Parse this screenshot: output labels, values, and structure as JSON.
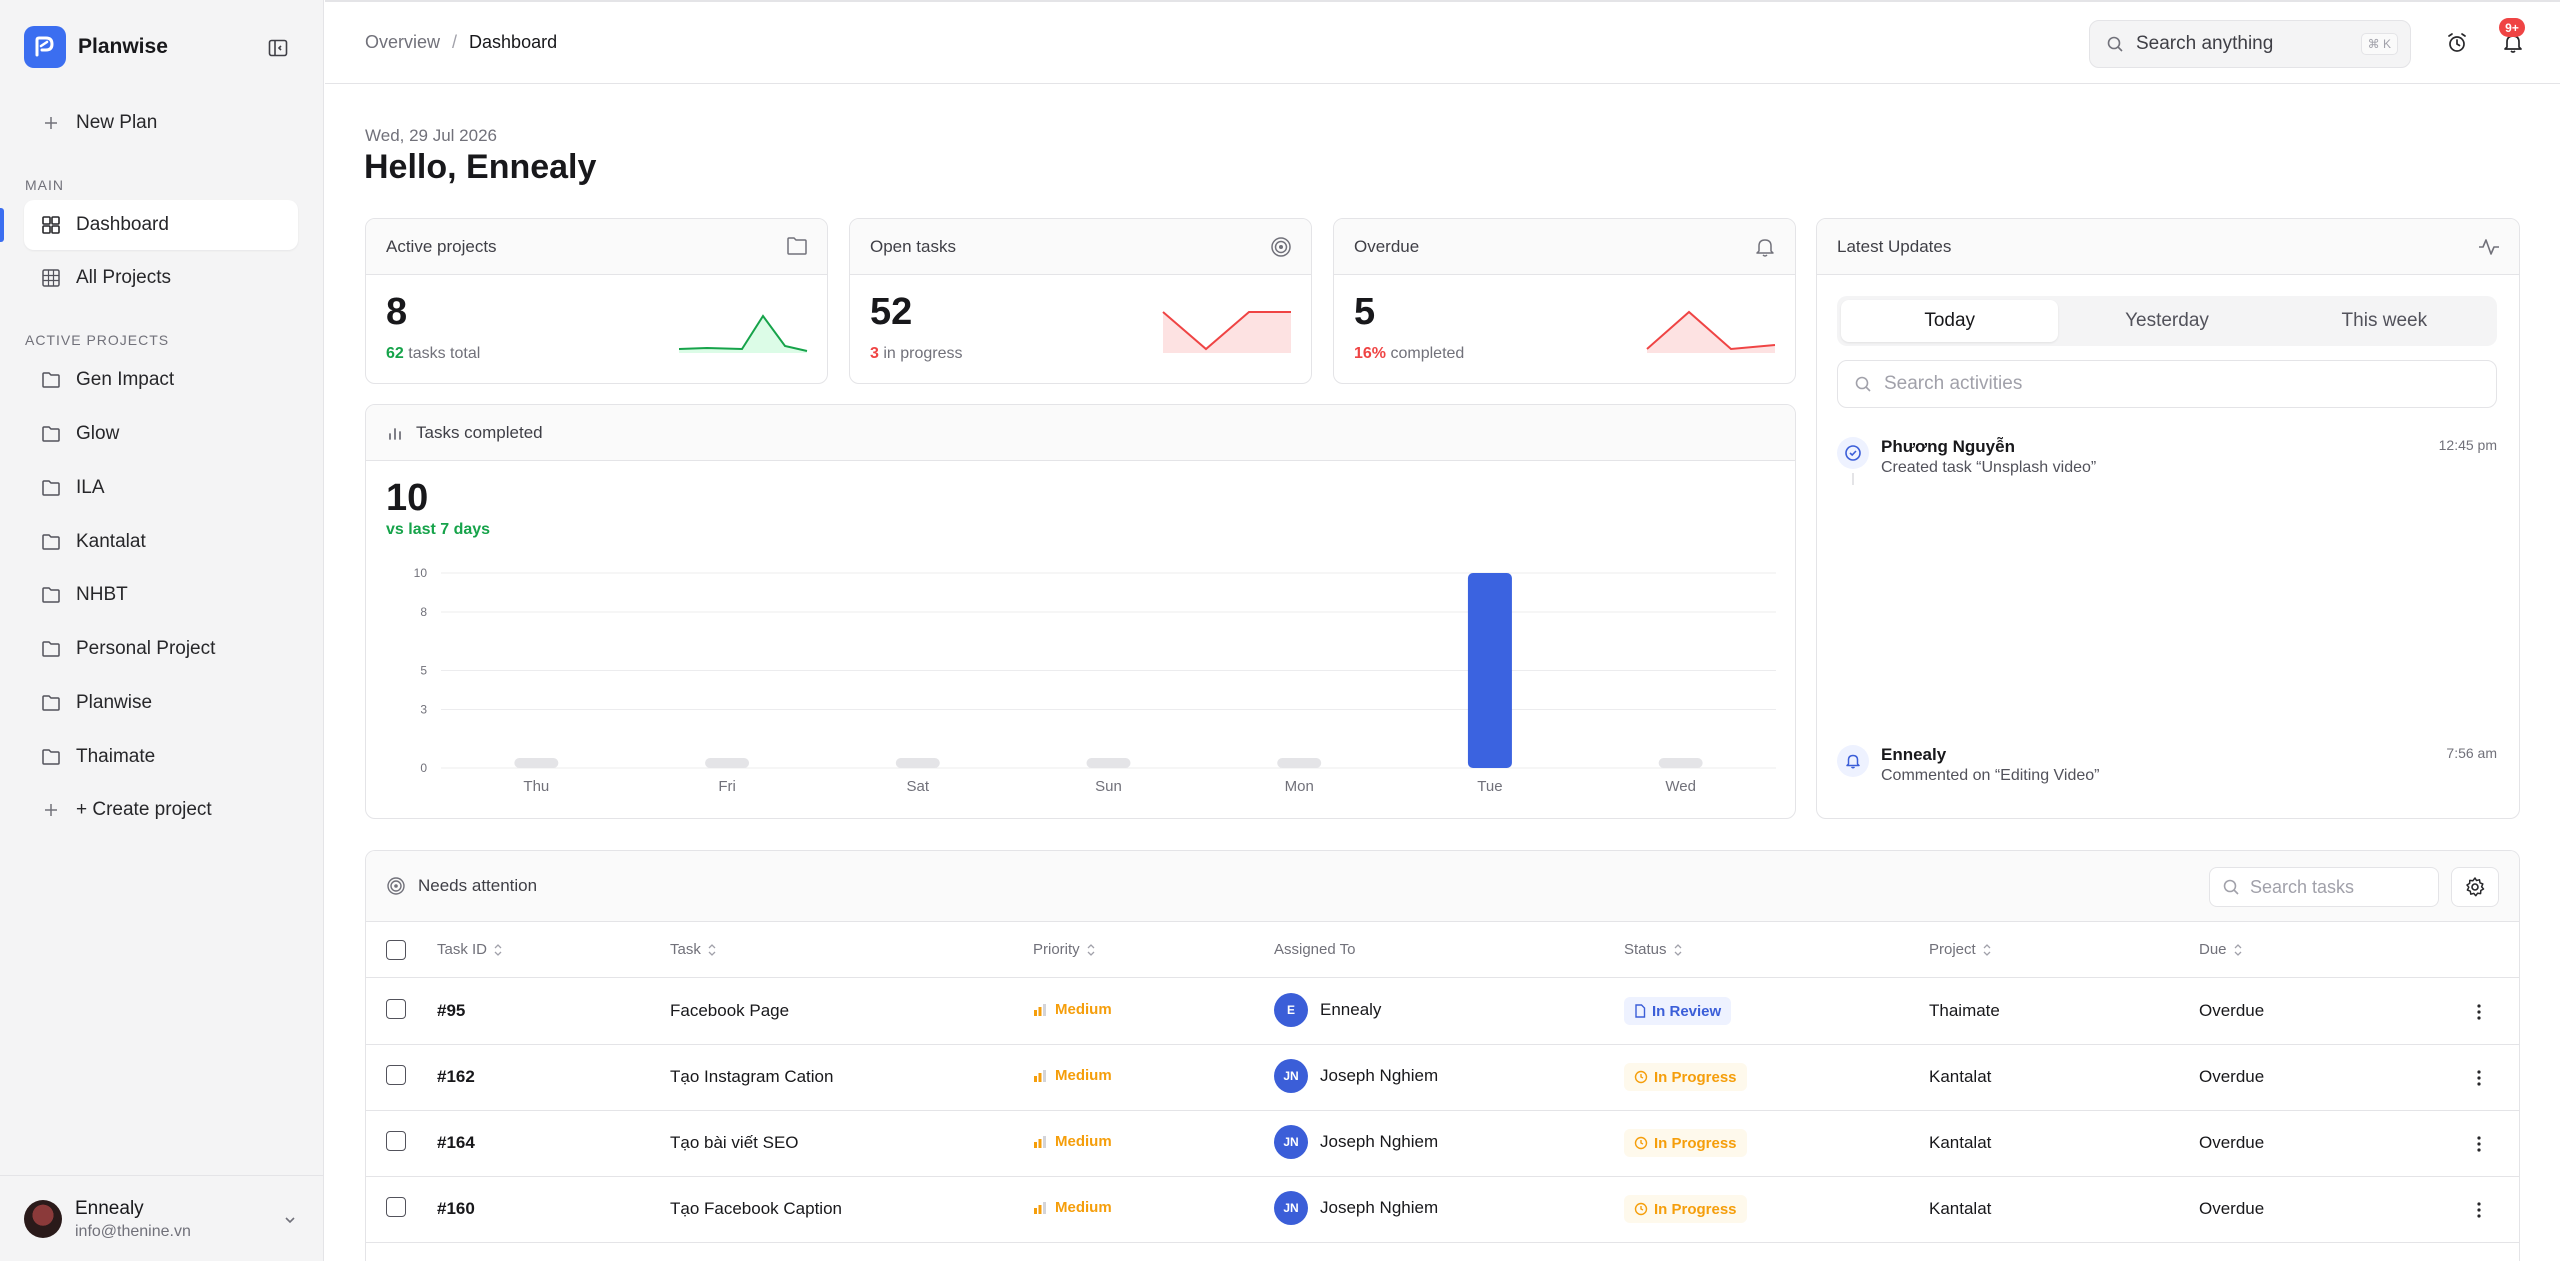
{
  "app": {
    "name": "Planwise"
  },
  "sidebar": {
    "new_plan": "New Plan",
    "main_section": "MAIN",
    "main_items": [
      {
        "label": "Dashboard",
        "icon": "dashboard-icon"
      },
      {
        "label": "All Projects",
        "icon": "grid-icon"
      }
    ],
    "projects_section": "ACTIVE PROJECTS",
    "projects": [
      "Gen Impact",
      "Glow",
      "ILA",
      "Kantalat",
      "NHBT",
      "Personal Project",
      "Planwise",
      "Thaimate"
    ],
    "create_project": "+ Create project",
    "user": {
      "name": "Ennealy",
      "email": "info@thenine.vn"
    }
  },
  "topbar": {
    "breadcrumb": [
      "Overview",
      "Dashboard"
    ],
    "search_placeholder": "Search anything",
    "search_shortcut": "⌘ K",
    "notifications_badge": "9+"
  },
  "header": {
    "date": "Wed, 29 Jul 2026",
    "greeting": "Hello, Ennealy"
  },
  "stats": [
    {
      "title": "Active projects",
      "value": "8",
      "sub_value": "62",
      "sub_label": "tasks total",
      "sub_color": "#16a34a"
    },
    {
      "title": "Open tasks",
      "value": "52",
      "sub_value": "3",
      "sub_label": "in progress",
      "sub_color": "#ef4444"
    },
    {
      "title": "Overdue",
      "value": "5",
      "sub_value": "16%",
      "sub_label": "completed",
      "sub_color": "#ef4444"
    }
  ],
  "tasks_chart": {
    "title": "Tasks completed",
    "value": "10",
    "subtitle": "vs last 7 days"
  },
  "chart_data": {
    "type": "bar",
    "categories": [
      "Thu",
      "Fri",
      "Sat",
      "Sun",
      "Mon",
      "Tue",
      "Wed"
    ],
    "values": [
      0,
      0,
      0,
      0,
      0,
      10,
      0
    ],
    "y_ticks": [
      0,
      3,
      5,
      8,
      10
    ],
    "ylim": [
      0,
      10
    ],
    "bar_color": "#3b63e0",
    "empty_bar_color": "#e4e4e7",
    "grid": true
  },
  "updates": {
    "title": "Latest Updates",
    "tabs": [
      "Today",
      "Yesterday",
      "This week"
    ],
    "active_tab": "Today",
    "search_placeholder": "Search activities",
    "items": [
      {
        "name": "Phương Nguyễn",
        "desc": "Created task “Unsplash video”",
        "time": "12:45 pm",
        "icon": "check-circle-icon"
      },
      {
        "name": "Ennealy",
        "desc": "Commented on “Editing Video”",
        "time": "7:56 am",
        "icon": "bell-icon"
      }
    ]
  },
  "table": {
    "title": "Needs attention",
    "search_placeholder": "Search tasks",
    "columns": [
      "Task ID",
      "Task",
      "Priority",
      "Assigned To",
      "Status",
      "Project",
      "Due"
    ],
    "rows": [
      {
        "id": "#95",
        "task": "Facebook Page",
        "priority": "Medium",
        "assignee": "Ennealy",
        "initials": "E",
        "status": "In Review",
        "status_type": "review",
        "project": "Thaimate",
        "due": "Overdue"
      },
      {
        "id": "#162",
        "task": "Tạo Instagram Cation",
        "priority": "Medium",
        "assignee": "Joseph Nghiem",
        "initials": "JN",
        "status": "In Progress",
        "status_type": "progress",
        "project": "Kantalat",
        "due": "Overdue"
      },
      {
        "id": "#164",
        "task": "Tạo bài viết SEO",
        "priority": "Medium",
        "assignee": "Joseph Nghiem",
        "initials": "JN",
        "status": "In Progress",
        "status_type": "progress",
        "project": "Kantalat",
        "due": "Overdue"
      },
      {
        "id": "#160",
        "task": "Tạo Facebook Caption",
        "priority": "Medium",
        "assignee": "Joseph Nghiem",
        "initials": "JN",
        "status": "In Progress",
        "status_type": "progress",
        "project": "Kantalat",
        "due": "Overdue"
      }
    ]
  },
  "colors": {
    "accent": "#3b6ef0",
    "success": "#16a34a",
    "danger": "#ef4444",
    "warning": "#f59e0b"
  }
}
